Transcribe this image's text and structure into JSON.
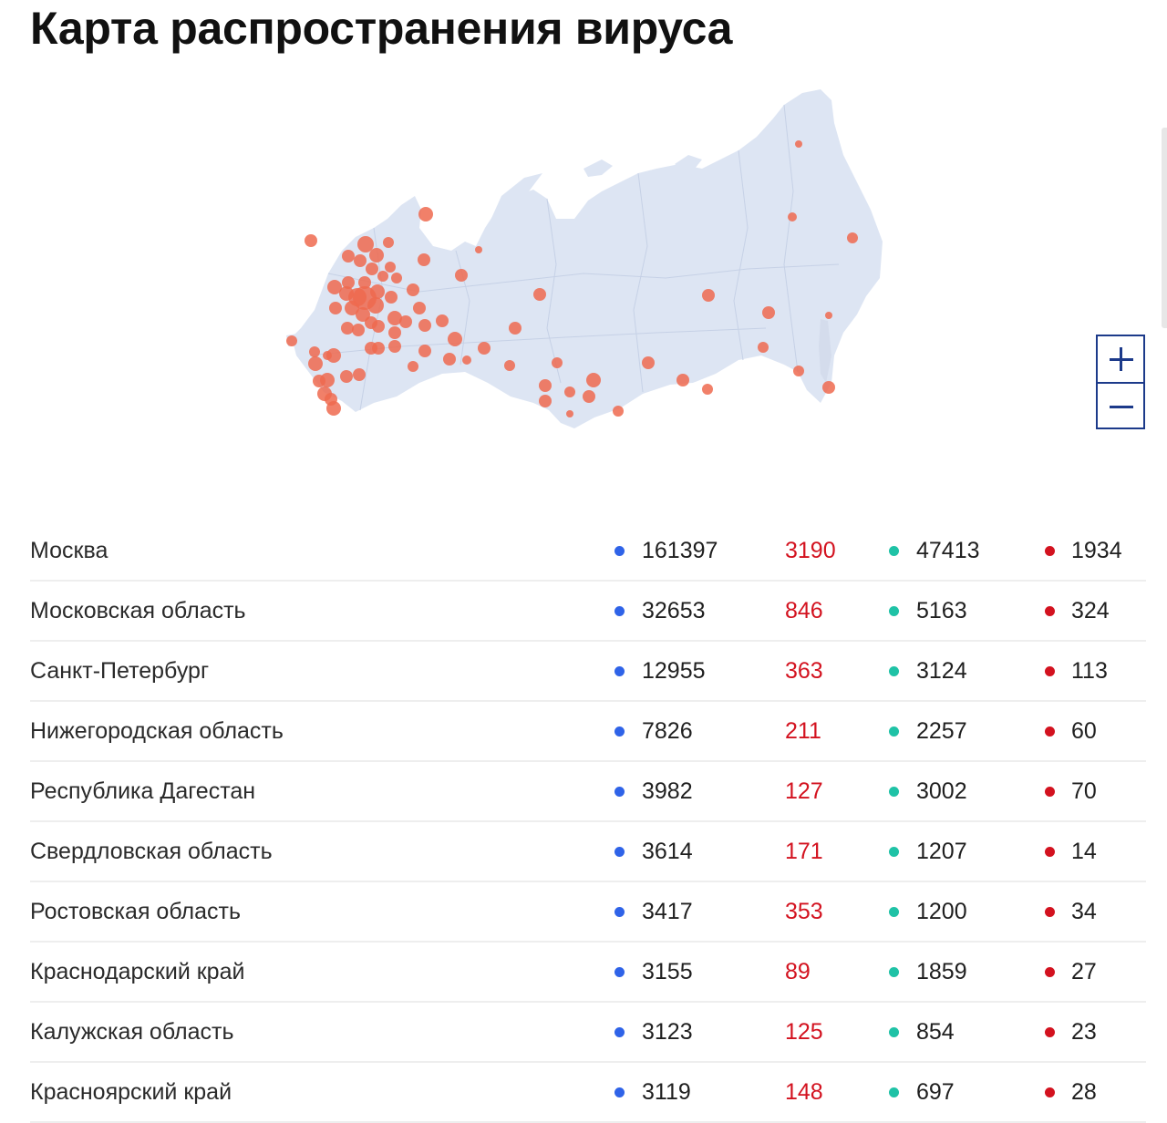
{
  "page": {
    "title": "Карта распространения вируса"
  },
  "colors": {
    "map_fill": "#dde5f3",
    "hotspot": "#ef6a4f",
    "cases_dot": "#2f63e8",
    "new_cases_text": "#d3121f",
    "recovered_dot": "#1fc2a6",
    "deaths_dot": "#d3121f",
    "zoom_border": "#1c3a8a"
  },
  "map": {
    "region": "Russia",
    "controls": {
      "zoom_in_icon": "plus-icon",
      "zoom_out_icon": "minus-icon"
    }
  },
  "table": {
    "rows": [
      {
        "region": "Москва",
        "cases": "161397",
        "new": "3190",
        "recovered": "47413",
        "deaths": "1934"
      },
      {
        "region": "Московская область",
        "cases": "32653",
        "new": "846",
        "recovered": "5163",
        "deaths": "324"
      },
      {
        "region": "Санкт-Петербург",
        "cases": "12955",
        "new": "363",
        "recovered": "3124",
        "deaths": "113"
      },
      {
        "region": "Нижегородская область",
        "cases": "7826",
        "new": "211",
        "recovered": "2257",
        "deaths": "60"
      },
      {
        "region": "Республика Дагестан",
        "cases": "3982",
        "new": "127",
        "recovered": "3002",
        "deaths": "70"
      },
      {
        "region": "Свердловская область",
        "cases": "3614",
        "new": "171",
        "recovered": "1207",
        "deaths": "14"
      },
      {
        "region": "Ростовская область",
        "cases": "3417",
        "new": "353",
        "recovered": "1200",
        "deaths": "34"
      },
      {
        "region": "Краснодарский край",
        "cases": "3155",
        "new": "89",
        "recovered": "1859",
        "deaths": "27"
      },
      {
        "region": "Калужская область",
        "cases": "3123",
        "new": "125",
        "recovered": "854",
        "deaths": "23"
      },
      {
        "region": "Красноярский край",
        "cases": "3119",
        "new": "148",
        "recovered": "697",
        "deaths": "28"
      }
    ]
  }
}
